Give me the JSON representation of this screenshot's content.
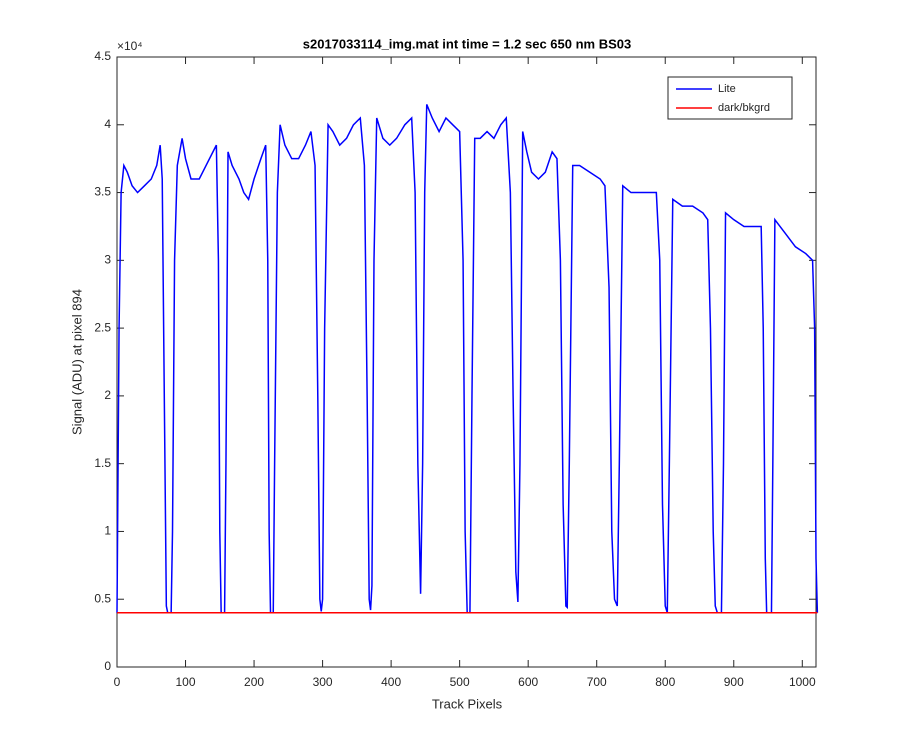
{
  "chart_data": {
    "type": "line",
    "title": "s2017033114_img.mat int time = 1.2 sec  650 nm BS03",
    "x_label": "Track Pixels",
    "y_label": "Signal (ADU) at pixel 894",
    "y_exponent": "×10⁴",
    "xlim": [
      0,
      1020
    ],
    "xticks": [
      0,
      100,
      200,
      300,
      400,
      500,
      600,
      700,
      800,
      900,
      1000
    ],
    "ylim": [
      0,
      4.5
    ],
    "yticks": [
      0,
      0.5,
      1,
      1.5,
      2,
      2.5,
      3,
      3.5,
      4,
      4.5
    ],
    "grid": false,
    "legend": "top-right",
    "series": [
      {
        "name": "Lite",
        "color": "#0000ff",
        "x": [
          0,
          3,
          6,
          10,
          15,
          22,
          30,
          40,
          50,
          58,
          63,
          66,
          69,
          72,
          74,
          79,
          81,
          84,
          88,
          95,
          100,
          108,
          120,
          130,
          140,
          145,
          148,
          150,
          152,
          157,
          159,
          162,
          168,
          178,
          185,
          192,
          200,
          210,
          217,
          220,
          222,
          224,
          228,
          230,
          234,
          238,
          245,
          255,
          265,
          275,
          283,
          289,
          293,
          296,
          298,
          300,
          303,
          308,
          315,
          325,
          335,
          345,
          355,
          361,
          365,
          368,
          370,
          372,
          375,
          379,
          388,
          398,
          408,
          420,
          430,
          435,
          439,
          443,
          446,
          449,
          452,
          460,
          470,
          480,
          490,
          500,
          505,
          508,
          511,
          515,
          518,
          522,
          530,
          540,
          550,
          560,
          568,
          574,
          578,
          582,
          585,
          588,
          592,
          598,
          605,
          615,
          625,
          635,
          642,
          647,
          651,
          655,
          657,
          660,
          665,
          675,
          690,
          705,
          712,
          718,
          722,
          726,
          730,
          733,
          738,
          750,
          760,
          775,
          787,
          792,
          796,
          800,
          803,
          806,
          811,
          825,
          840,
          855,
          862,
          866,
          870,
          873,
          876,
          882,
          885,
          888,
          900,
          915,
          930,
          940,
          943,
          946,
          948,
          955,
          957,
          960,
          975,
          990,
          1005,
          1015,
          1018,
          1020,
          1022
        ],
        "values": [
          0.4,
          2.5,
          3.5,
          3.7,
          3.65,
          3.55,
          3.5,
          3.55,
          3.6,
          3.7,
          3.85,
          3.6,
          2.0,
          0.45,
          0.4,
          0.4,
          1.0,
          3.0,
          3.7,
          3.9,
          3.75,
          3.6,
          3.6,
          3.7,
          3.8,
          3.85,
          3.0,
          1.0,
          0.4,
          0.4,
          1.5,
          3.8,
          3.7,
          3.6,
          3.5,
          3.45,
          3.6,
          3.75,
          3.85,
          3.0,
          1.0,
          0.4,
          0.4,
          1.5,
          3.5,
          4.0,
          3.85,
          3.75,
          3.75,
          3.85,
          3.95,
          3.7,
          2.0,
          0.5,
          0.41,
          0.5,
          2.5,
          4.0,
          3.95,
          3.85,
          3.9,
          4.0,
          4.05,
          3.7,
          2.0,
          0.5,
          0.42,
          0.6,
          3.0,
          4.05,
          3.9,
          3.85,
          3.9,
          4.0,
          4.05,
          3.5,
          1.5,
          0.54,
          1.5,
          3.5,
          4.15,
          4.05,
          3.95,
          4.05,
          4.0,
          3.95,
          3.0,
          1.0,
          0.4,
          0.4,
          2.0,
          3.9,
          3.9,
          3.95,
          3.9,
          4.0,
          4.05,
          3.5,
          2.0,
          0.7,
          0.48,
          1.5,
          3.95,
          3.8,
          3.65,
          3.6,
          3.65,
          3.8,
          3.75,
          3.0,
          1.2,
          0.45,
          0.44,
          1.5,
          3.7,
          3.7,
          3.65,
          3.6,
          3.55,
          2.8,
          1.0,
          0.5,
          0.45,
          1.5,
          3.55,
          3.5,
          3.5,
          3.5,
          3.5,
          3.0,
          1.2,
          0.45,
          0.4,
          1.5,
          3.45,
          3.4,
          3.4,
          3.35,
          3.3,
          2.5,
          1.0,
          0.45,
          0.4,
          0.4,
          1.5,
          3.35,
          3.3,
          3.25,
          3.25,
          3.25,
          2.5,
          0.8,
          0.4,
          0.4,
          1.5,
          3.3,
          3.2,
          3.1,
          3.05,
          3.0,
          2.5,
          0.8,
          0.4
        ]
      },
      {
        "name": "dark/bkgrd",
        "color": "#ff0000",
        "x": [
          0,
          1022
        ],
        "values": [
          0.4,
          0.4
        ]
      }
    ]
  }
}
